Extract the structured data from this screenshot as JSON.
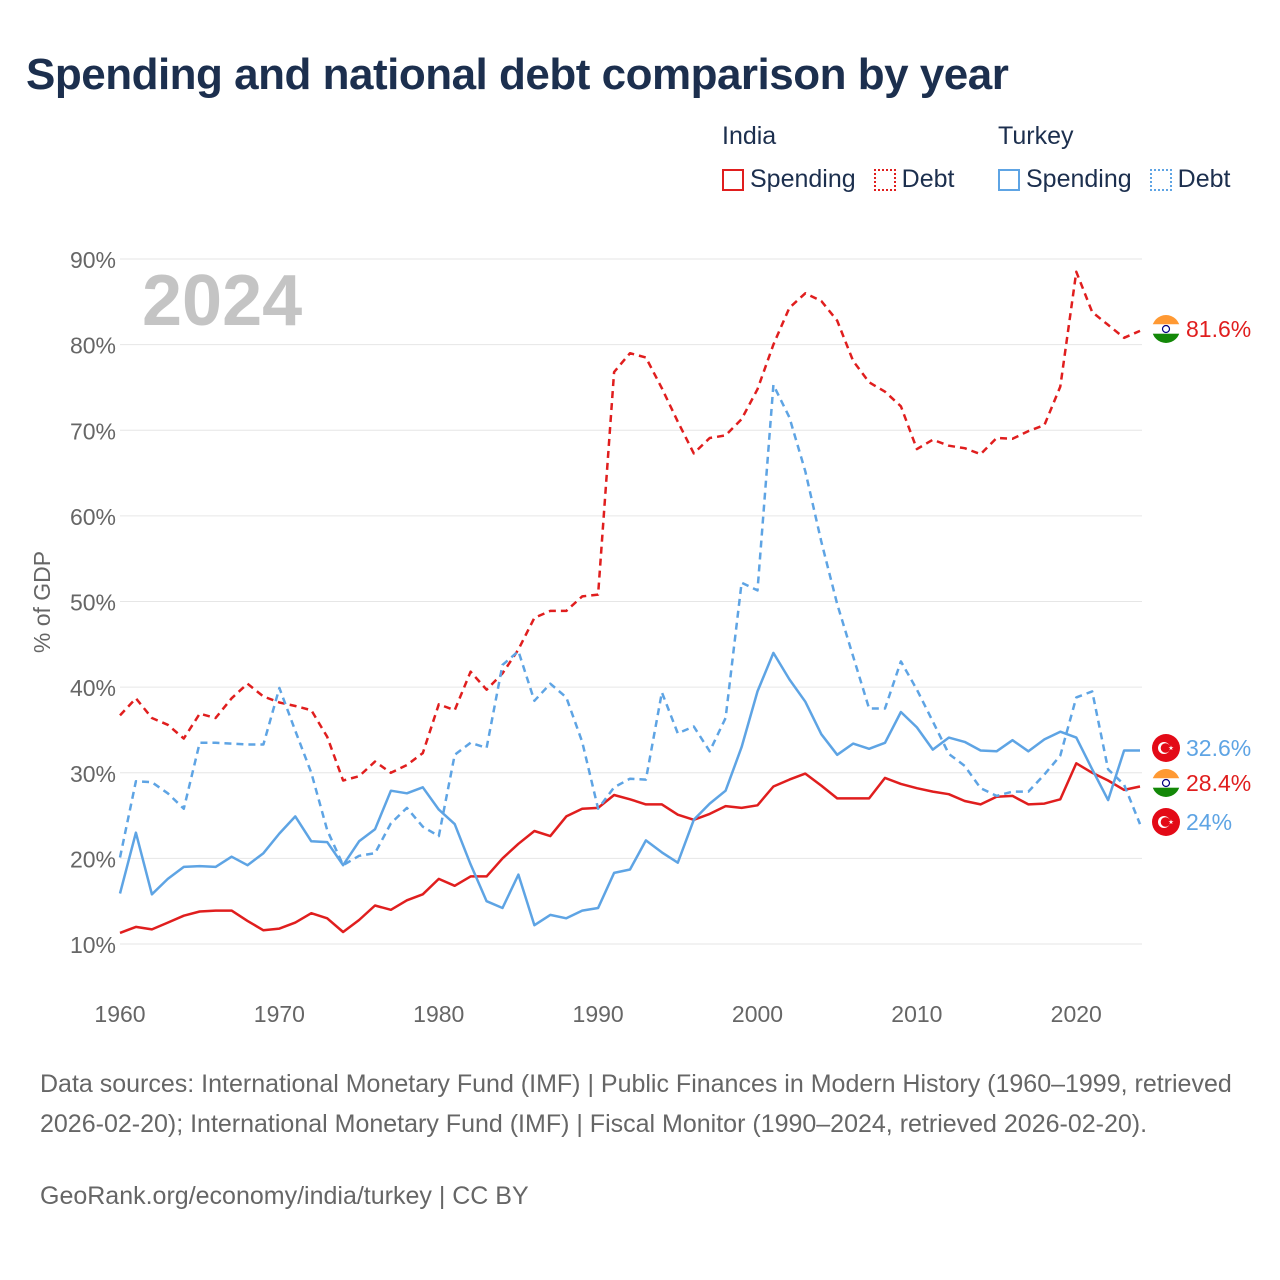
{
  "title": "Spending and national debt comparison by year",
  "legend": {
    "groups": [
      {
        "country": "India",
        "items": [
          {
            "label": "Spending"
          },
          {
            "label": "Debt"
          }
        ]
      },
      {
        "country": "Turkey",
        "items": [
          {
            "label": "Spending"
          },
          {
            "label": "Debt"
          }
        ]
      }
    ]
  },
  "colors": {
    "india": "#e01e1e",
    "turkey": "#5ea4e4",
    "grid": "#e6e6e6",
    "axis_text": "#666666"
  },
  "year_label": "2024",
  "chart_data": {
    "type": "line",
    "ylabel": "% of GDP",
    "xlabel": "",
    "xlim": [
      1960,
      2024
    ],
    "ylim": [
      10,
      90
    ],
    "x_ticks": [
      1960,
      1970,
      1980,
      1990,
      2000,
      2010,
      2020
    ],
    "y_ticks": [
      "10%",
      "20%",
      "30%",
      "40%",
      "50%",
      "60%",
      "70%",
      "80%",
      "90%"
    ],
    "grid": true,
    "start_year": 1960,
    "series": [
      {
        "name": "India Spending",
        "country": "India",
        "style": "solid",
        "values": [
          11.3,
          12,
          11.7,
          12.5,
          13.3,
          13.8,
          13.9,
          13.9,
          12.7,
          11.6,
          11.8,
          12.5,
          13.6,
          13,
          11.4,
          12.8,
          14.5,
          14,
          15.1,
          15.8,
          17.6,
          16.8,
          17.9,
          17.9,
          20,
          21.7,
          23.2,
          22.6,
          24.9,
          25.8,
          25.9,
          27.4,
          26.9,
          26.3,
          26.3,
          25.1,
          24.5,
          25.2,
          26.1,
          25.9,
          26.2,
          28.4,
          29.2,
          29.9,
          28.5,
          27,
          27,
          27,
          29.4,
          28.7,
          28.2,
          27.8,
          27.5,
          26.7,
          26.3,
          27.2,
          27.3,
          26.3,
          26.4,
          26.9,
          31.1,
          30,
          29.1,
          28,
          28.4
        ]
      },
      {
        "name": "India Debt",
        "country": "India",
        "style": "dashed",
        "values": [
          36.7,
          38.7,
          36.4,
          35.6,
          34,
          36.9,
          36.4,
          38.7,
          40.4,
          38.9,
          38.2,
          37.8,
          37.3,
          34.2,
          29.1,
          29.6,
          31.3,
          30,
          30.9,
          32.3,
          38,
          37.3,
          41.8,
          39.7,
          41.6,
          44.4,
          48.1,
          48.9,
          48.9,
          50.6,
          50.8,
          76.8,
          79,
          78.5,
          74.9,
          71,
          67.3,
          69.1,
          69.4,
          71.3,
          74.8,
          80,
          84.3,
          86,
          85.1,
          82.8,
          78.1,
          75.6,
          74.5,
          72.8,
          67.8,
          68.9,
          68.2,
          67.9,
          67.2,
          69.1,
          69,
          69.9,
          70.6,
          75.1,
          88.5,
          83.8,
          82.3,
          80.8,
          81.6
        ]
      },
      {
        "name": "Turkey Spending",
        "country": "Turkey",
        "style": "solid",
        "values": [
          15.9,
          23,
          15.8,
          17.6,
          19,
          19.1,
          19,
          20.2,
          19.2,
          20.6,
          22.9,
          24.9,
          22,
          21.9,
          19.2,
          22,
          23.4,
          27.9,
          27.6,
          28.3,
          25.7,
          24,
          19.3,
          15,
          14.2,
          18.1,
          12.2,
          13.4,
          13,
          13.9,
          14.2,
          18.3,
          18.7,
          22.1,
          20.7,
          19.5,
          24.5,
          26.4,
          27.9,
          33,
          39.5,
          44,
          40.9,
          38.3,
          34.5,
          32.1,
          33.4,
          32.8,
          33.5,
          37.1,
          35.3,
          32.7,
          34.1,
          33.6,
          32.6,
          32.5,
          33.8,
          32.5,
          33.9,
          34.8,
          34.1,
          30.4,
          26.8,
          32.6,
          32.6
        ]
      },
      {
        "name": "Turkey Debt",
        "country": "Turkey",
        "style": "dashed",
        "values": [
          20.1,
          29,
          28.9,
          27.6,
          25.8,
          33.5,
          33.5,
          33.4,
          33.3,
          33.3,
          39.9,
          34.9,
          30,
          23.3,
          19.2,
          20.3,
          20.6,
          24.1,
          25.9,
          23.7,
          22.6,
          32.1,
          33.5,
          32.9,
          42.6,
          44.2,
          38.4,
          40.4,
          38.8,
          33.6,
          25.8,
          28.3,
          29.3,
          29.2,
          39.4,
          34.6,
          35.4,
          32.5,
          36.4,
          52.2,
          51.3,
          75.3,
          71.5,
          65.2,
          57,
          49.7,
          43.6,
          37.5,
          37.5,
          43,
          39.7,
          36,
          32.2,
          30.8,
          28.2,
          27.3,
          27.8,
          27.8,
          29.8,
          32,
          38.8,
          39.5,
          30.4,
          28.6,
          24
        ]
      }
    ],
    "end_labels": [
      {
        "country": "India",
        "value": "81.6%"
      },
      {
        "country": "Turkey",
        "value": "32.6%"
      },
      {
        "country": "India",
        "value": "28.4%"
      },
      {
        "country": "Turkey",
        "value": "24%"
      }
    ]
  },
  "footer": {
    "sources": "Data sources: International Monetary Fund (IMF) | Public Finances in Modern History (1960–1999, retrieved 2026-02-20); International Monetary Fund (IMF) | Fiscal Monitor (1990–2024, retrieved 2026-02-20).",
    "credit": "GeoRank.org/economy/india/turkey | CC BY"
  }
}
